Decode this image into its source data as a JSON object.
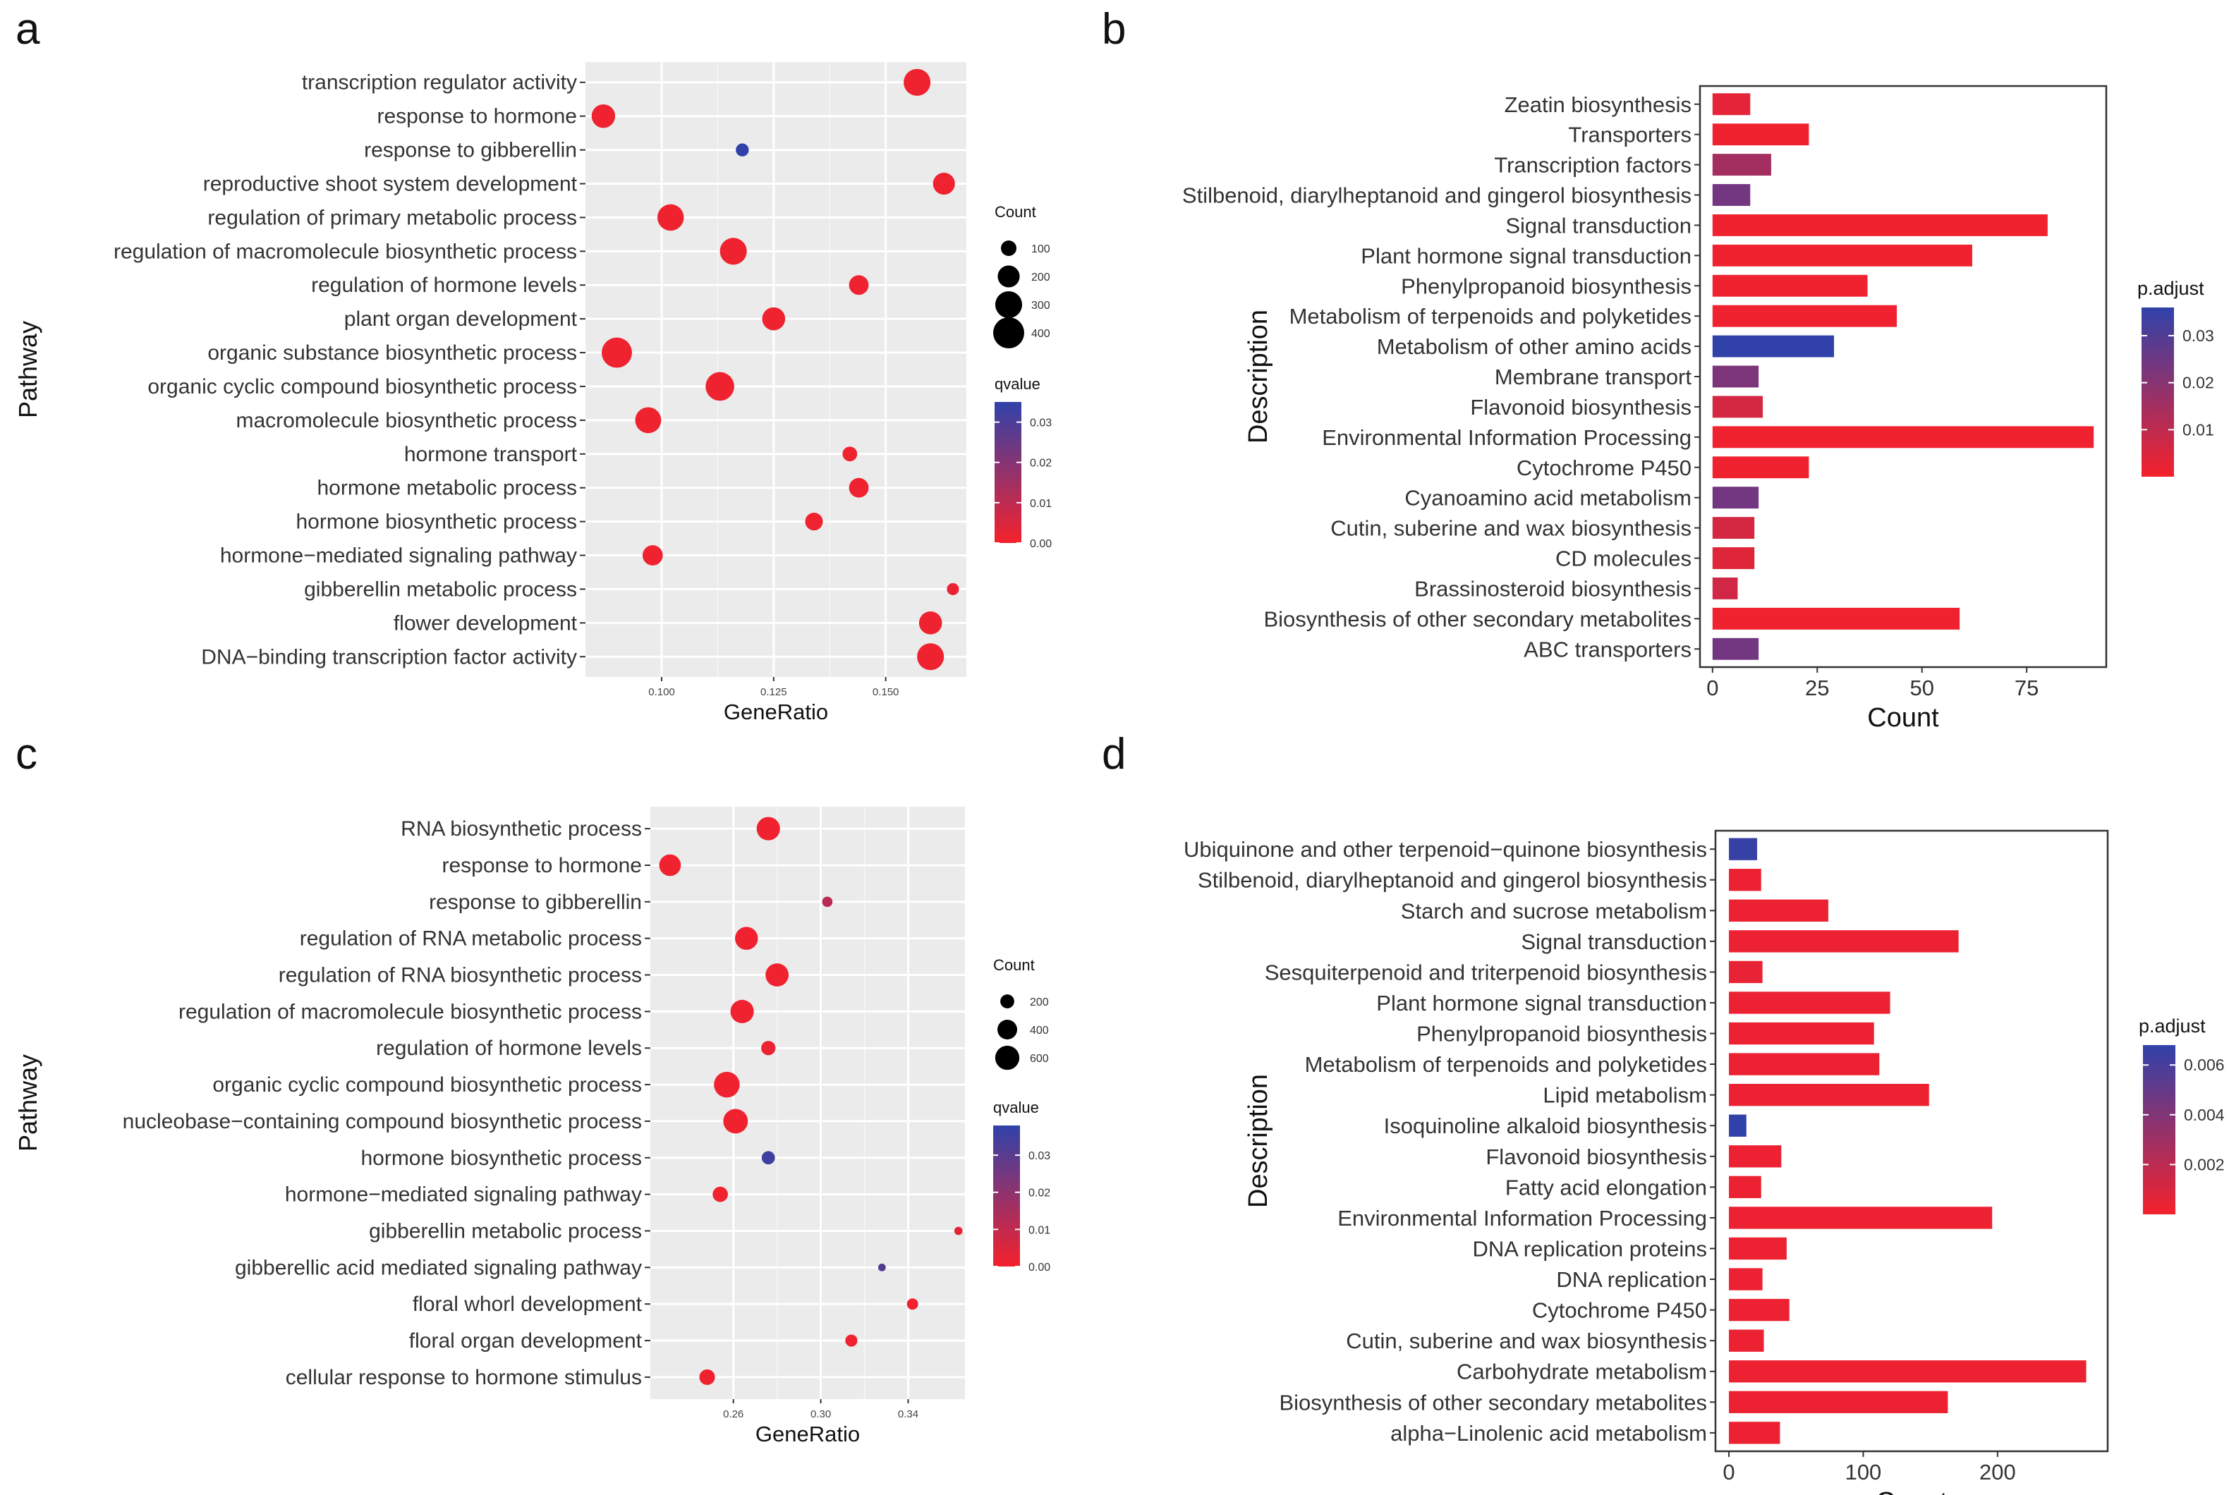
{
  "chart_data": [
    {
      "panel": "a",
      "type": "scatter",
      "xlabel": "GeneRatio",
      "ylabel": "Pathway",
      "xlim": [
        0.083,
        0.168
      ],
      "xticks": [
        0.1,
        0.125,
        0.15
      ],
      "xtick_labels": [
        "0.100",
        "0.125",
        "0.150"
      ],
      "size_legend": {
        "title": "Count",
        "values": [
          100,
          200,
          300,
          400
        ],
        "labels": [
          "100",
          "200",
          "300",
          "400"
        ]
      },
      "color_legend": {
        "title": "qvalue",
        "min": 0,
        "max": 0.035,
        "ticks": [
          0.0,
          0.01,
          0.02,
          0.03
        ],
        "tick_labels": [
          "0.00",
          "0.01",
          "0.02",
          "0.03"
        ]
      },
      "categories": [
        "transcription regulator activity",
        "response to hormone",
        "response to gibberellin",
        "reproductive shoot system development",
        "regulation of primary metabolic process",
        "regulation of macromolecule biosynthetic process",
        "regulation of hormone levels",
        "plant organ development",
        "organic substance biosynthetic process",
        "organic cyclic compound biosynthetic process",
        "macromolecule biosynthetic process",
        "hormone transport",
        "hormone metabolic process",
        "hormone biosynthetic process",
        "hormone−mediated signaling pathway",
        "gibberellin metabolic process",
        "flower development",
        "DNA−binding transcription factor activity"
      ],
      "x": [
        0.157,
        0.087,
        0.118,
        0.163,
        0.102,
        0.116,
        0.144,
        0.125,
        0.09,
        0.113,
        0.097,
        0.142,
        0.144,
        0.134,
        0.098,
        0.165,
        0.16,
        0.16
      ],
      "count": [
        300,
        230,
        70,
        200,
        290,
        300,
        160,
        220,
        380,
        340,
        280,
        90,
        160,
        130,
        170,
        60,
        220,
        300
      ],
      "qvalue": [
        0.001,
        0.001,
        0.035,
        0.001,
        0.001,
        0.001,
        0.001,
        0.001,
        0.001,
        0.001,
        0.001,
        0.001,
        0.001,
        0.001,
        0.001,
        0.002,
        0.001,
        0.001
      ]
    },
    {
      "panel": "b",
      "type": "bar",
      "orientation": "horizontal",
      "xlabel": "Count",
      "ylabel": "Description",
      "xlim": [
        -3,
        94
      ],
      "xticks": [
        0,
        25,
        50,
        75
      ],
      "xtick_labels": [
        "0",
        "25",
        "50",
        "75"
      ],
      "color_legend": {
        "title": "p.adjust",
        "min": 0,
        "max": 0.036,
        "ticks": [
          0.01,
          0.02,
          0.03
        ],
        "tick_labels": [
          "0.01",
          "0.02",
          "0.03"
        ]
      },
      "categories": [
        "Zeatin biosynthesis",
        "Transporters",
        "Transcription factors",
        "Stilbenoid, diarylheptanoid and gingerol biosynthesis",
        "Signal transduction",
        "Plant hormone signal transduction",
        "Phenylpropanoid biosynthesis",
        "Metabolism of terpenoids and polyketides",
        "Metabolism of other amino acids",
        "Membrane transport",
        "Flavonoid biosynthesis",
        "Environmental Information Processing",
        "Cytochrome P450",
        "Cyanoamino acid metabolism",
        "Cutin, suberine and wax biosynthesis",
        "CD molecules",
        "Brassinosteroid biosynthesis",
        "Biosynthesis of other secondary metabolites",
        "ABC transporters"
      ],
      "values": [
        9,
        23,
        14,
        9,
        80,
        62,
        37,
        44,
        29,
        11,
        12,
        91,
        23,
        11,
        10,
        10,
        6,
        59,
        11
      ],
      "p_adjust": [
        0.003,
        0.001,
        0.015,
        0.024,
        0.001,
        0.001,
        0.001,
        0.001,
        0.036,
        0.022,
        0.006,
        0.001,
        0.001,
        0.024,
        0.006,
        0.004,
        0.007,
        0.001,
        0.024
      ]
    },
    {
      "panel": "c",
      "type": "scatter",
      "xlabel": "GeneRatio",
      "ylabel": "Pathway",
      "xlim": [
        0.222,
        0.366
      ],
      "xticks": [
        0.26,
        0.3,
        0.34
      ],
      "xtick_labels": [
        "0.26",
        "0.30",
        "0.34"
      ],
      "size_legend": {
        "title": "Count",
        "values": [
          200,
          400,
          600
        ],
        "labels": [
          "200",
          "400",
          "600"
        ]
      },
      "color_legend": {
        "title": "qvalue",
        "min": 0,
        "max": 0.038,
        "ticks": [
          0.0,
          0.01,
          0.02,
          0.03
        ],
        "tick_labels": [
          "0.00",
          "0.01",
          "0.02",
          "0.03"
        ]
      },
      "categories": [
        "RNA biosynthetic process",
        "response to hormone",
        "response to gibberellin",
        "regulation of RNA metabolic process",
        "regulation of RNA biosynthetic process",
        "regulation of macromolecule biosynthetic process",
        "regulation of hormone levels",
        "organic cyclic compound biosynthetic process",
        "nucleobase−containing compound biosynthetic process",
        "hormone biosynthetic process",
        "hormone−mediated signaling pathway",
        "gibberellin metabolic process",
        "gibberellic acid mediated signaling pathway",
        "floral whorl development",
        "floral organ development",
        "cellular response to hormone stimulus"
      ],
      "x": [
        0.276,
        0.231,
        0.303,
        0.266,
        0.28,
        0.264,
        0.276,
        0.257,
        0.261,
        0.276,
        0.254,
        0.363,
        0.328,
        0.342,
        0.314,
        0.248
      ],
      "count": [
        560,
        480,
        110,
        540,
        550,
        560,
        210,
        680,
        620,
        180,
        240,
        70,
        60,
        130,
        150,
        250
      ],
      "qvalue": [
        0.001,
        0.001,
        0.012,
        0.001,
        0.001,
        0.001,
        0.002,
        0.001,
        0.001,
        0.035,
        0.001,
        0.004,
        0.031,
        0.001,
        0.001,
        0.001
      ]
    },
    {
      "panel": "d",
      "type": "bar",
      "orientation": "horizontal",
      "xlabel": "Count",
      "ylabel": "Description",
      "xlim": [
        -10,
        282
      ],
      "xticks": [
        0,
        100,
        200
      ],
      "xtick_labels": [
        "0",
        "100",
        "200"
      ],
      "color_legend": {
        "title": "p.adjust",
        "min": 0,
        "max": 0.0068,
        "ticks": [
          0.002,
          0.004,
          0.006
        ],
        "tick_labels": [
          "0.002",
          "0.004",
          "0.006"
        ]
      },
      "categories": [
        "Ubiquinone and other terpenoid−quinone biosynthesis",
        "Stilbenoid, diarylheptanoid and gingerol biosynthesis",
        "Starch and sucrose metabolism",
        "Signal transduction",
        "Sesquiterpenoid and triterpenoid biosynthesis",
        "Plant hormone signal transduction",
        "Phenylpropanoid biosynthesis",
        "Metabolism of terpenoids and polyketides",
        "Lipid metabolism",
        "Isoquinoline alkaloid biosynthesis",
        "Flavonoid biosynthesis",
        "Fatty acid elongation",
        "Environmental Information Processing",
        "DNA replication proteins",
        "DNA replication",
        "Cytochrome P450",
        "Cutin, suberine and wax biosynthesis",
        "Carbohydrate metabolism",
        "Biosynthesis of other secondary metabolites",
        "alpha−Linolenic acid metabolism"
      ],
      "values": [
        21,
        24,
        74,
        171,
        25,
        120,
        108,
        112,
        149,
        13,
        39,
        24,
        196,
        43,
        25,
        45,
        26,
        266,
        163,
        38
      ],
      "p_adjust": [
        0.0066,
        0.0003,
        0.0003,
        0.0003,
        0.0005,
        0.0003,
        0.0003,
        0.0003,
        0.0003,
        0.0068,
        0.0003,
        0.0003,
        0.0003,
        0.0003,
        0.0003,
        0.0003,
        0.0003,
        0.0003,
        0.0003,
        0.0003
      ]
    }
  ]
}
